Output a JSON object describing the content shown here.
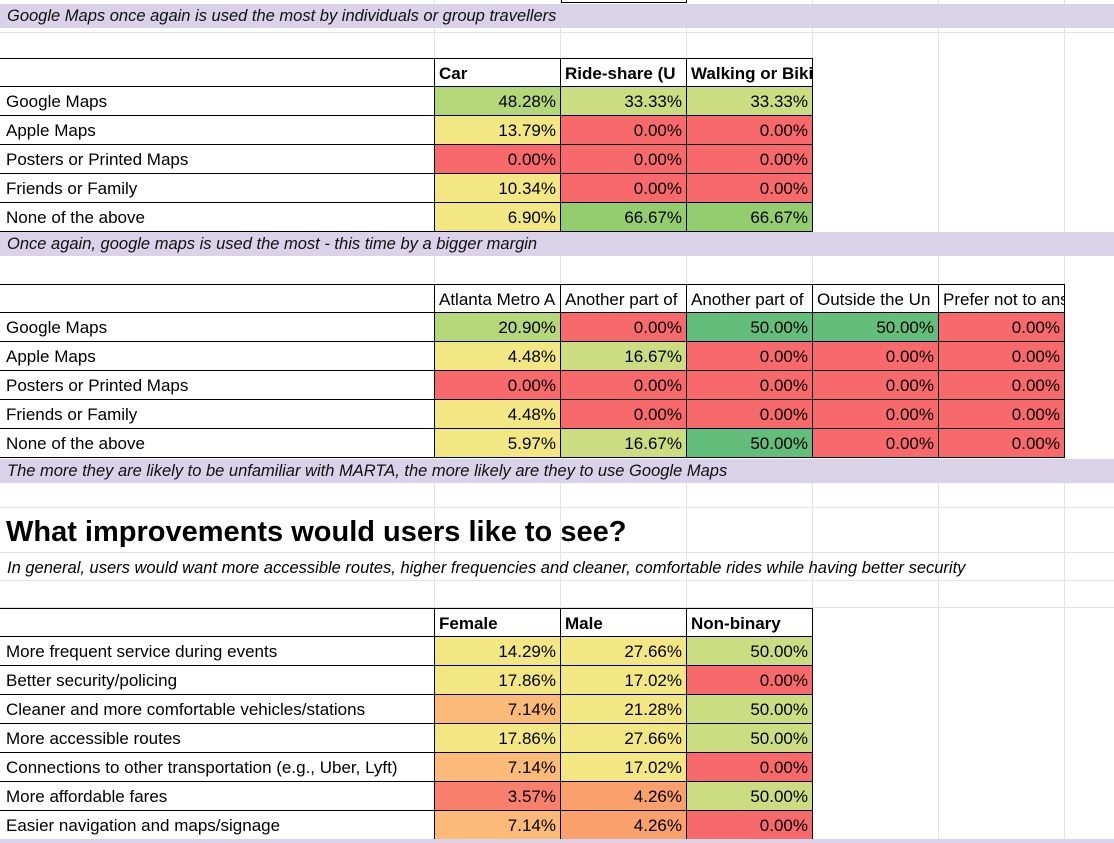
{
  "sheet": {
    "colors": {
      "green_dark": "#63be7b",
      "green_mid": "#93cd6e",
      "green_light": "#b4d77a",
      "yellow_green": "#cbdc81",
      "yellow": "#f2e783",
      "orange_light": "#fcba79",
      "orange": "#f9a06d",
      "red_orange": "#f8806d",
      "red": "#f8696b",
      "band": "#d9d2e9"
    },
    "note_1": "Google Maps once again is used the most by individuals or group travellers",
    "table_1": {
      "headers": [
        "Car",
        "Ride-share (U",
        "Walking or Biking"
      ],
      "rows": [
        {
          "label": "Google Maps",
          "values": [
            "48.28%",
            "33.33%",
            "33.33%"
          ],
          "colors": [
            "#b4d77a",
            "#cbdc81",
            "#cbdc81"
          ]
        },
        {
          "label": "Apple Maps",
          "values": [
            "13.79%",
            "0.00%",
            "0.00%"
          ],
          "colors": [
            "#f2e783",
            "#f8696b",
            "#f8696b"
          ]
        },
        {
          "label": "Posters or Printed Maps",
          "values": [
            "0.00%",
            "0.00%",
            "0.00%"
          ],
          "colors": [
            "#f8696b",
            "#f8696b",
            "#f8696b"
          ]
        },
        {
          "label": "Friends or Family",
          "values": [
            "10.34%",
            "0.00%",
            "0.00%"
          ],
          "colors": [
            "#f2e783",
            "#f8696b",
            "#f8696b"
          ]
        },
        {
          "label": "None of the above",
          "values": [
            "6.90%",
            "66.67%",
            "66.67%"
          ],
          "colors": [
            "#f2e783",
            "#93cd6e",
            "#93cd6e"
          ]
        }
      ]
    },
    "note_2": "Once again, google maps is used the most - this time by a bigger margin",
    "table_2": {
      "headers": [
        "Atlanta Metro A",
        "Another part of",
        "Another part of",
        "Outside the Un",
        "Prefer not to answer"
      ],
      "rows": [
        {
          "label": "Google Maps",
          "values": [
            "20.90%",
            "0.00%",
            "50.00%",
            "50.00%",
            "0.00%"
          ],
          "colors": [
            "#b4d77a",
            "#f8696b",
            "#63be7b",
            "#63be7b",
            "#f8696b"
          ]
        },
        {
          "label": "Apple Maps",
          "values": [
            "4.48%",
            "16.67%",
            "0.00%",
            "0.00%",
            "0.00%"
          ],
          "colors": [
            "#f2e783",
            "#cbdc81",
            "#f8696b",
            "#f8696b",
            "#f8696b"
          ]
        },
        {
          "label": "Posters or Printed Maps",
          "values": [
            "0.00%",
            "0.00%",
            "0.00%",
            "0.00%",
            "0.00%"
          ],
          "colors": [
            "#f8696b",
            "#f8696b",
            "#f8696b",
            "#f8696b",
            "#f8696b"
          ]
        },
        {
          "label": "Friends or Family",
          "values": [
            "4.48%",
            "0.00%",
            "0.00%",
            "0.00%",
            "0.00%"
          ],
          "colors": [
            "#f2e783",
            "#f8696b",
            "#f8696b",
            "#f8696b",
            "#f8696b"
          ]
        },
        {
          "label": "None of the above",
          "values": [
            "5.97%",
            "16.67%",
            "50.00%",
            "0.00%",
            "0.00%"
          ],
          "colors": [
            "#f2e783",
            "#cbdc81",
            "#63be7b",
            "#f8696b",
            "#f8696b"
          ]
        }
      ]
    },
    "note_3": "The more they are likely to be unfamiliar with MARTA, the more likely are they to use Google Maps",
    "section_title": "What improvements would users like to see?",
    "section_subtitle": "In general, users would want more accessible routes, higher frequencies and cleaner, comfortable rides while having better security",
    "table_3": {
      "headers": [
        "Female",
        "Male",
        "Non-binary"
      ],
      "rows": [
        {
          "label": "More frequent service during events",
          "values": [
            "14.29%",
            "27.66%",
            "50.00%"
          ],
          "colors": [
            "#f2e783",
            "#f2e783",
            "#cbdc81"
          ]
        },
        {
          "label": "Better security/policing",
          "values": [
            "17.86%",
            "17.02%",
            "0.00%"
          ],
          "colors": [
            "#f2e783",
            "#f2e783",
            "#f8696b"
          ]
        },
        {
          "label": "Cleaner and more comfortable vehicles/stations",
          "values": [
            "7.14%",
            "21.28%",
            "50.00%"
          ],
          "colors": [
            "#fcba79",
            "#f2e783",
            "#cbdc81"
          ]
        },
        {
          "label": "More accessible routes",
          "values": [
            "17.86%",
            "27.66%",
            "50.00%"
          ],
          "colors": [
            "#f2e783",
            "#f2e783",
            "#cbdc81"
          ]
        },
        {
          "label": "Connections to other transportation (e.g., Uber, Lyft)",
          "values": [
            "7.14%",
            "17.02%",
            "0.00%"
          ],
          "colors": [
            "#fcba79",
            "#f2e783",
            "#f8696b"
          ]
        },
        {
          "label": "More affordable fares",
          "values": [
            "3.57%",
            "4.26%",
            "50.00%"
          ],
          "colors": [
            "#f8806d",
            "#f9a06d",
            "#cbdc81"
          ]
        },
        {
          "label": "Easier navigation and maps/signage",
          "values": [
            "7.14%",
            "4.26%",
            "0.00%"
          ],
          "colors": [
            "#fcba79",
            "#f9a06d",
            "#f8696b"
          ]
        }
      ]
    }
  }
}
